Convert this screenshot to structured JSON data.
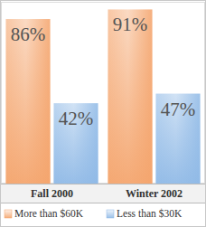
{
  "chart_data": {
    "type": "bar",
    "categories": [
      "Fall 2000",
      "Winter 2002"
    ],
    "series": [
      {
        "name": "More than $60K",
        "color": "#f4a46c",
        "values": [
          86,
          91
        ],
        "value_labels": [
          "86%",
          "91%"
        ]
      },
      {
        "name": "Less than $30K",
        "color": "#8fb9e6",
        "values": [
          42,
          47
        ],
        "value_labels": [
          "42%",
          "47%"
        ]
      }
    ],
    "ylim": [
      0,
      95
    ],
    "data_labels": true,
    "tick_labels": "x",
    "legend": "bottom"
  }
}
